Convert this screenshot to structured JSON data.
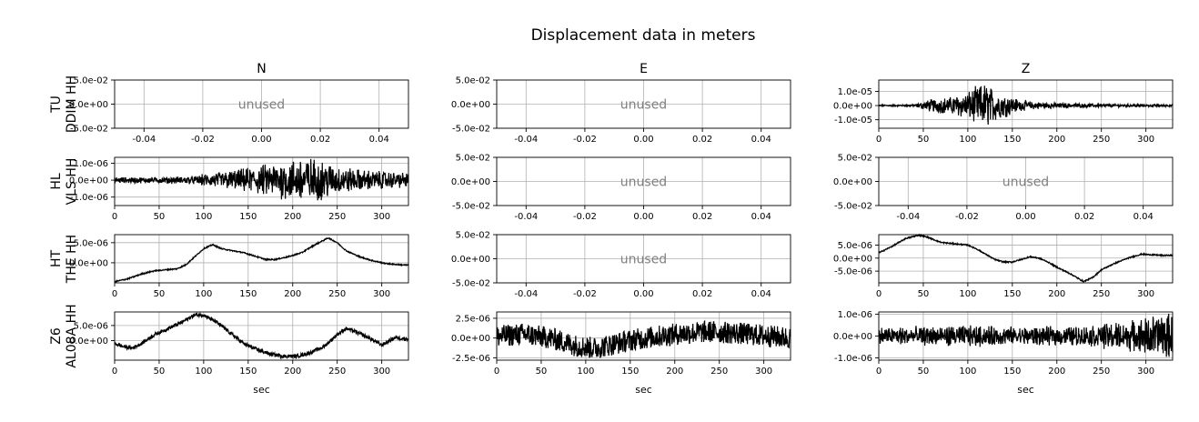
{
  "figure": {
    "title": "Displacement data in meters",
    "columns": [
      "N",
      "E",
      "Z"
    ],
    "rows": [
      {
        "net": "TU",
        "chan": "DDIM HH"
      },
      {
        "net": "HL",
        "chan": "VLS HH"
      },
      {
        "net": "HT",
        "chan": "THE HH"
      },
      {
        "net": "Z6",
        "chan": "AL08A HH"
      }
    ],
    "xlabel": "sec",
    "unused_label": "unused",
    "colors": {
      "trace": "#000000",
      "grid": "#b0b0b0",
      "unused_text": "#808080",
      "axes": "#000000"
    }
  },
  "chart_data": [
    {
      "type": "empty",
      "row": 0,
      "col": 0,
      "xlim": [
        -0.05,
        0.05
      ],
      "ylim": [
        -0.05,
        0.05
      ],
      "xticks": [
        "-0.04",
        "-0.02",
        "0.00",
        "0.02",
        "0.04"
      ],
      "xtick_values": [
        -0.04,
        -0.02,
        0,
        0.02,
        0.04
      ],
      "yticks": [
        "5.0e-02",
        "0.0e+00",
        "-5.0e-02"
      ],
      "ytick_values": [
        0.05,
        0,
        -0.05
      ]
    },
    {
      "type": "empty",
      "row": 0,
      "col": 1,
      "xlim": [
        -0.05,
        0.05
      ],
      "ylim": [
        -0.05,
        0.05
      ],
      "xticks": [
        "-0.04",
        "-0.02",
        "0.00",
        "0.02",
        "0.04"
      ],
      "xtick_values": [
        -0.04,
        -0.02,
        0,
        0.02,
        0.04
      ],
      "yticks": [
        "5.0e-02",
        "0.0e+00",
        "-5.0e-02"
      ],
      "ytick_values": [
        0.05,
        0,
        -0.05
      ]
    },
    {
      "type": "line",
      "row": 0,
      "col": 2,
      "xlim": [
        0,
        330
      ],
      "ylim": [
        -1.6e-05,
        1.8e-05
      ],
      "xticks": [
        "0",
        "50",
        "100",
        "150",
        "200",
        "250",
        "300"
      ],
      "xtick_values": [
        0,
        50,
        100,
        150,
        200,
        250,
        300
      ],
      "yticks": [
        "1.0e-05",
        "0.0e+00",
        "-1.0e-05"
      ],
      "ytick_values": [
        1e-05,
        0,
        -1e-05
      ],
      "envelope": [
        [
          0,
          4e-07
        ],
        [
          40,
          6e-07
        ],
        [
          50,
          2.5e-06
        ],
        [
          60,
          4e-06
        ],
        [
          80,
          5e-06
        ],
        [
          100,
          8e-06
        ],
        [
          110,
          1.1e-05
        ],
        [
          120,
          1.35e-05
        ],
        [
          130,
          9e-06
        ],
        [
          145,
          6e-06
        ],
        [
          160,
          3e-06
        ],
        [
          180,
          2e-06
        ],
        [
          200,
          1.5e-06
        ],
        [
          250,
          1e-06
        ],
        [
          300,
          8e-07
        ],
        [
          330,
          6e-07
        ]
      ]
    },
    {
      "type": "line",
      "row": 1,
      "col": 0,
      "xlim": [
        0,
        330
      ],
      "ylim": [
        -1.5e-06,
        1.35e-06
      ],
      "xticks": [
        "0",
        "50",
        "100",
        "150",
        "200",
        "250",
        "300"
      ],
      "xtick_values": [
        0,
        50,
        100,
        150,
        200,
        250,
        300
      ],
      "yticks": [
        "1.0e-06",
        "0.0e+00",
        "-1.0e-06"
      ],
      "ytick_values": [
        1e-06,
        0,
        -1e-06
      ],
      "envelope": [
        [
          0,
          1.5e-07
        ],
        [
          50,
          1.5e-07
        ],
        [
          90,
          2e-07
        ],
        [
          100,
          3e-07
        ],
        [
          150,
          6e-07
        ],
        [
          180,
          8.5e-07
        ],
        [
          200,
          1e-06
        ],
        [
          210,
          1.2e-06
        ],
        [
          230,
          1e-06
        ],
        [
          250,
          7e-07
        ],
        [
          280,
          5e-07
        ],
        [
          330,
          3.5e-07
        ]
      ]
    },
    {
      "type": "empty",
      "row": 1,
      "col": 1,
      "xlim": [
        -0.05,
        0.05
      ],
      "ylim": [
        -0.05,
        0.05
      ],
      "xticks": [
        "-0.04",
        "-0.02",
        "0.00",
        "0.02",
        "0.04"
      ],
      "xtick_values": [
        -0.04,
        -0.02,
        0,
        0.02,
        0.04
      ],
      "yticks": [
        "5.0e-02",
        "0.0e+00",
        "-5.0e-02"
      ],
      "ytick_values": [
        0.05,
        0,
        -0.05
      ]
    },
    {
      "type": "empty",
      "row": 1,
      "col": 2,
      "xlim": [
        -0.05,
        0.05
      ],
      "ylim": [
        -0.05,
        0.05
      ],
      "xticks": [
        "-0.04",
        "-0.02",
        "0.00",
        "0.02",
        "0.04"
      ],
      "xtick_values": [
        -0.04,
        -0.02,
        0,
        0.02,
        0.04
      ],
      "yticks": [
        "5.0e-02",
        "0.0e+00",
        "-5.0e-02"
      ],
      "ytick_values": [
        0.05,
        0,
        -0.05
      ]
    },
    {
      "type": "line",
      "row": 2,
      "col": 0,
      "xlim": [
        0,
        330
      ],
      "ylim": [
        -5e-06,
        7e-06
      ],
      "xticks": [
        "0",
        "50",
        "100",
        "150",
        "200",
        "250",
        "300"
      ],
      "xtick_values": [
        0,
        50,
        100,
        150,
        200,
        250,
        300
      ],
      "yticks": [
        "5.0e-06",
        "0.0e+00"
      ],
      "ytick_values": [
        5e-06,
        0
      ],
      "points": [
        [
          0,
          -4.7e-06
        ],
        [
          15,
          -4e-06
        ],
        [
          30,
          -2.8e-06
        ],
        [
          45,
          -2e-06
        ],
        [
          55,
          -1.8e-06
        ],
        [
          70,
          -1.5e-06
        ],
        [
          80,
          -5e-07
        ],
        [
          90,
          1.5e-06
        ],
        [
          100,
          3.5e-06
        ],
        [
          110,
          4.5e-06
        ],
        [
          120,
          3.5e-06
        ],
        [
          130,
          3.1e-06
        ],
        [
          145,
          2.5e-06
        ],
        [
          160,
          1.5e-06
        ],
        [
          170,
          8e-07
        ],
        [
          180,
          8e-07
        ],
        [
          195,
          1.5e-06
        ],
        [
          210,
          2.5e-06
        ],
        [
          225,
          4.5e-06
        ],
        [
          240,
          6.2e-06
        ],
        [
          250,
          5e-06
        ],
        [
          260,
          3e-06
        ],
        [
          275,
          1.5e-06
        ],
        [
          290,
          5e-07
        ],
        [
          305,
          -2e-07
        ],
        [
          320,
          -5e-07
        ],
        [
          330,
          -6e-07
        ]
      ]
    },
    {
      "type": "empty",
      "row": 2,
      "col": 1,
      "xlim": [
        -0.05,
        0.05
      ],
      "ylim": [
        -0.05,
        0.05
      ],
      "xticks": [
        "-0.04",
        "-0.02",
        "0.00",
        "0.02",
        "0.04"
      ],
      "xtick_values": [
        -0.04,
        -0.02,
        0,
        0.02,
        0.04
      ],
      "yticks": [
        "5.0e-02",
        "0.0e+00",
        "-5.0e-02"
      ],
      "ytick_values": [
        0.05,
        0,
        -0.05
      ]
    },
    {
      "type": "line",
      "row": 2,
      "col": 2,
      "xlim": [
        0,
        330
      ],
      "ylim": [
        -9.5e-06,
        9e-06
      ],
      "xticks": [
        "0",
        "50",
        "100",
        "150",
        "200",
        "250",
        "300"
      ],
      "xtick_values": [
        0,
        50,
        100,
        150,
        200,
        250,
        300
      ],
      "yticks": [
        "5.0e-06",
        "0.0e+00",
        "-5.0e-06"
      ],
      "ytick_values": [
        5e-06,
        0,
        -5e-06
      ],
      "points": [
        [
          0,
          2e-06
        ],
        [
          15,
          4.5e-06
        ],
        [
          30,
          7.5e-06
        ],
        [
          45,
          8.8e-06
        ],
        [
          55,
          8e-06
        ],
        [
          70,
          6e-06
        ],
        [
          85,
          5.5e-06
        ],
        [
          100,
          5e-06
        ],
        [
          110,
          3.5e-06
        ],
        [
          120,
          1.5e-06
        ],
        [
          130,
          -5e-07
        ],
        [
          140,
          -1.5e-06
        ],
        [
          150,
          -1.5e-06
        ],
        [
          160,
          -5e-07
        ],
        [
          170,
          5e-07
        ],
        [
          180,
          0
        ],
        [
          190,
          -1.5e-06
        ],
        [
          200,
          -3.5e-06
        ],
        [
          215,
          -6e-06
        ],
        [
          230,
          -9e-06
        ],
        [
          240,
          -7.5e-06
        ],
        [
          250,
          -4.5e-06
        ],
        [
          265,
          -2e-06
        ],
        [
          280,
          0
        ],
        [
          295,
          1.5e-06
        ],
        [
          310,
          1.2e-06
        ],
        [
          320,
          1e-06
        ],
        [
          330,
          1.1e-06
        ]
      ]
    },
    {
      "type": "line",
      "row": 3,
      "col": 0,
      "xlim": [
        0,
        330
      ],
      "ylim": [
        -6.5e-06,
        9.5e-06
      ],
      "xticks": [
        "0",
        "50",
        "100",
        "150",
        "200",
        "250",
        "300"
      ],
      "xtick_values": [
        0,
        50,
        100,
        150,
        200,
        250,
        300
      ],
      "yticks": [
        "5.0e-06",
        "0.0e+00"
      ],
      "ytick_values": [
        5e-06,
        0
      ],
      "points": [
        [
          0,
          -1e-06
        ],
        [
          10,
          -2e-06
        ],
        [
          20,
          -2.5e-06
        ],
        [
          30,
          -1e-06
        ],
        [
          45,
          2e-06
        ],
        [
          60,
          4e-06
        ],
        [
          75,
          6e-06
        ],
        [
          90,
          8.5e-06
        ],
        [
          100,
          8.5e-06
        ],
        [
          115,
          6e-06
        ],
        [
          130,
          2.5e-06
        ],
        [
          145,
          -1e-06
        ],
        [
          160,
          -3e-06
        ],
        [
          175,
          -4.5e-06
        ],
        [
          190,
          -5.2e-06
        ],
        [
          205,
          -5.2e-06
        ],
        [
          220,
          -4e-06
        ],
        [
          235,
          -2e-06
        ],
        [
          250,
          2e-06
        ],
        [
          260,
          4e-06
        ],
        [
          270,
          3e-06
        ],
        [
          285,
          1e-06
        ],
        [
          300,
          -1.5e-06
        ],
        [
          315,
          1e-06
        ],
        [
          330,
          5e-07
        ]
      ],
      "envelope_width": 6e-07
    },
    {
      "type": "line",
      "row": 3,
      "col": 1,
      "xlim": [
        0,
        330
      ],
      "ylim": [
        -2.8e-06,
        3.3e-06
      ],
      "xticks": [
        "0",
        "50",
        "100",
        "150",
        "200",
        "250",
        "300"
      ],
      "xtick_values": [
        0,
        50,
        100,
        150,
        200,
        250,
        300
      ],
      "yticks": [
        "2.5e-06",
        "0.0e+00",
        "-2.5e-06"
      ],
      "ytick_values": [
        2.5e-06,
        0,
        -2.5e-06
      ],
      "points": [
        [
          0,
          2e-07
        ],
        [
          30,
          5e-07
        ],
        [
          60,
          0
        ],
        [
          90,
          -1e-06
        ],
        [
          110,
          -1.3e-06
        ],
        [
          130,
          -8e-07
        ],
        [
          150,
          -3e-07
        ],
        [
          180,
          2e-07
        ],
        [
          210,
          6e-07
        ],
        [
          240,
          8e-07
        ],
        [
          270,
          6e-07
        ],
        [
          300,
          3e-07
        ],
        [
          330,
          0
        ]
      ],
      "envelope_width": 1.4e-06
    },
    {
      "type": "line",
      "row": 3,
      "col": 2,
      "xlim": [
        0,
        330
      ],
      "ylim": [
        -1.1e-06,
        1.1e-06
      ],
      "xticks": [
        "0",
        "50",
        "100",
        "150",
        "200",
        "250",
        "300"
      ],
      "xtick_values": [
        0,
        50,
        100,
        150,
        200,
        250,
        300
      ],
      "yticks": [
        "1.0e-06",
        "0.0e+00",
        "-1.0e-06"
      ],
      "ytick_values": [
        1e-06,
        0,
        -1e-06
      ],
      "envelope": [
        [
          0,
          3.5e-07
        ],
        [
          50,
          3.5e-07
        ],
        [
          100,
          4e-07
        ],
        [
          150,
          3.5e-07
        ],
        [
          200,
          3.5e-07
        ],
        [
          240,
          4e-07
        ],
        [
          260,
          5e-07
        ],
        [
          280,
          5.5e-07
        ],
        [
          300,
          7e-07
        ],
        [
          320,
          9e-07
        ],
        [
          330,
          8e-07
        ]
      ]
    }
  ]
}
